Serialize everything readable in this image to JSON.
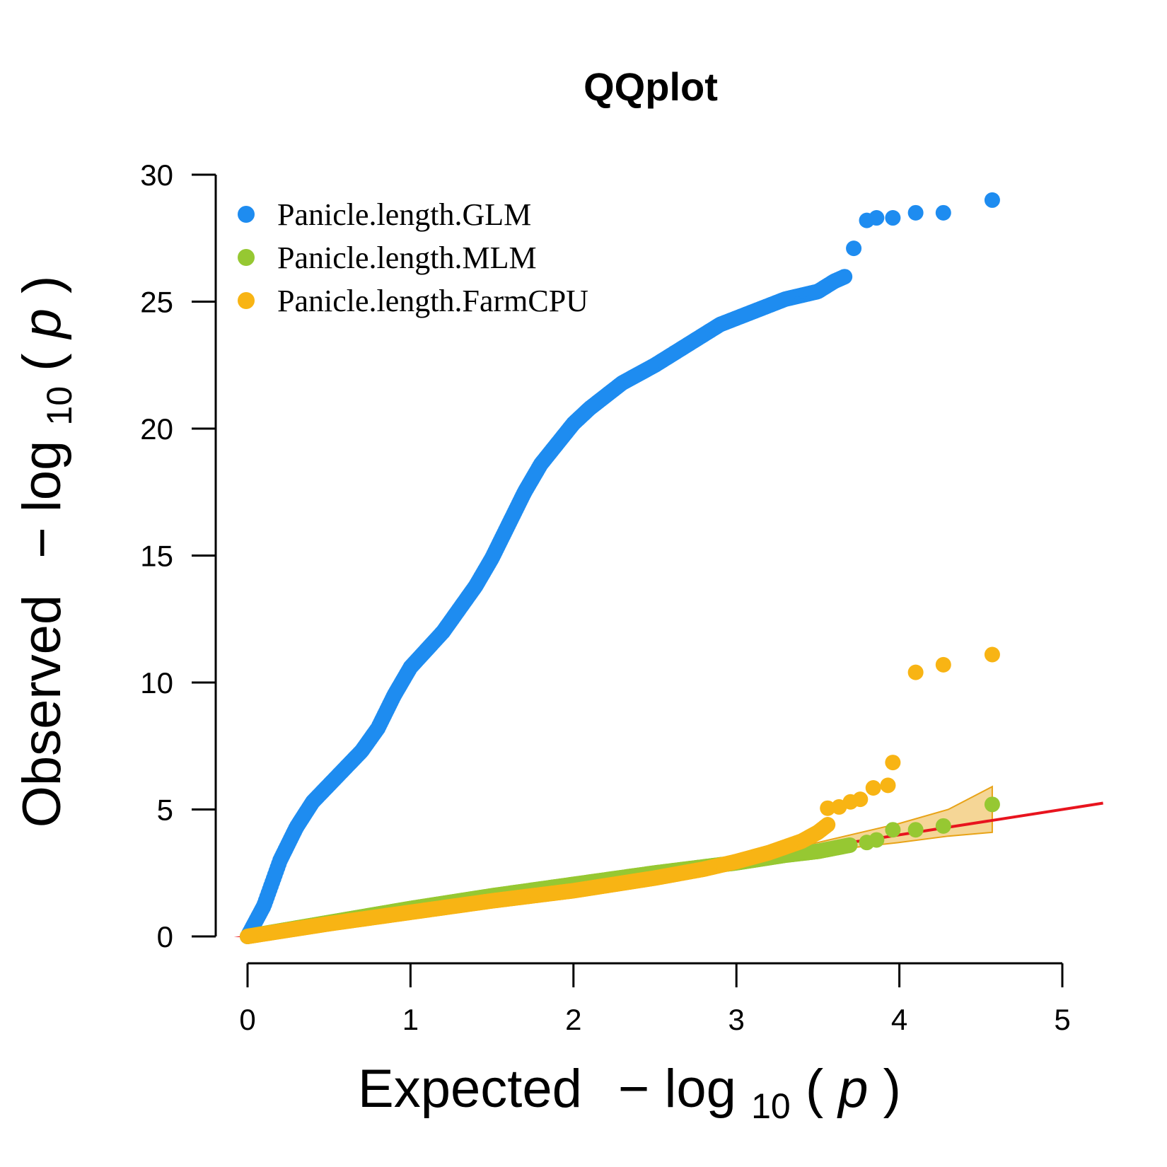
{
  "chart_data": {
    "type": "scatter",
    "title": "QQplot",
    "xlabel": {
      "prefix": "Expected",
      "minus": "−",
      "log": "log",
      "base": "10",
      "var": "p"
    },
    "ylabel": {
      "prefix": "Observed",
      "minus": "−",
      "log": "log",
      "base": "10",
      "var": "p"
    },
    "xlim": [
      0,
      5
    ],
    "ylim": [
      0,
      30
    ],
    "xticks": [
      "0",
      "1",
      "2",
      "3",
      "4",
      "5"
    ],
    "yticks": [
      "0",
      "5",
      "10",
      "15",
      "20",
      "25",
      "30"
    ],
    "legend_position": "top-left",
    "reference_line": {
      "color": "#e8141e",
      "slope": 1
    },
    "confidence_band": {
      "color": "#e8a317",
      "upper": [
        [
          3.0,
          3.05
        ],
        [
          3.5,
          3.7
        ],
        [
          4.0,
          4.45
        ],
        [
          4.3,
          5.0
        ],
        [
          4.57,
          5.9
        ]
      ],
      "lower": [
        [
          3.0,
          2.95
        ],
        [
          3.5,
          3.35
        ],
        [
          4.0,
          3.7
        ],
        [
          4.3,
          3.95
        ],
        [
          4.57,
          4.1
        ]
      ]
    },
    "series": [
      {
        "name": "Panicle.length.GLM",
        "color": "#1e8cf0",
        "curve": [
          [
            0.0,
            0.0
          ],
          [
            0.1,
            1.2
          ],
          [
            0.2,
            3.0
          ],
          [
            0.3,
            4.3
          ],
          [
            0.4,
            5.3
          ],
          [
            0.55,
            6.3
          ],
          [
            0.7,
            7.3
          ],
          [
            0.8,
            8.2
          ],
          [
            0.9,
            9.5
          ],
          [
            1.0,
            10.6
          ],
          [
            1.2,
            12.0
          ],
          [
            1.4,
            13.8
          ],
          [
            1.5,
            14.9
          ],
          [
            1.6,
            16.2
          ],
          [
            1.7,
            17.5
          ],
          [
            1.8,
            18.6
          ],
          [
            1.9,
            19.4
          ],
          [
            2.0,
            20.2
          ],
          [
            2.1,
            20.8
          ],
          [
            2.2,
            21.3
          ],
          [
            2.3,
            21.8
          ],
          [
            2.5,
            22.5
          ],
          [
            2.7,
            23.3
          ],
          [
            2.9,
            24.1
          ],
          [
            3.1,
            24.6
          ],
          [
            3.3,
            25.1
          ],
          [
            3.5,
            25.4
          ],
          [
            3.6,
            25.8
          ],
          [
            3.67,
            26.0
          ]
        ],
        "top_points": [
          [
            3.72,
            27.1
          ],
          [
            3.8,
            28.2
          ],
          [
            3.86,
            28.3
          ],
          [
            3.96,
            28.3
          ],
          [
            4.1,
            28.5
          ],
          [
            4.27,
            28.5
          ],
          [
            4.57,
            29.0
          ]
        ]
      },
      {
        "name": "Panicle.length.MLM",
        "color": "#96c832",
        "curve": [
          [
            0.0,
            0.0
          ],
          [
            0.5,
            0.55
          ],
          [
            1.0,
            1.1
          ],
          [
            1.5,
            1.6
          ],
          [
            2.0,
            2.05
          ],
          [
            2.5,
            2.5
          ],
          [
            3.0,
            2.9
          ],
          [
            3.3,
            3.2
          ],
          [
            3.5,
            3.35
          ],
          [
            3.7,
            3.6
          ]
        ],
        "top_points": [
          [
            3.8,
            3.7
          ],
          [
            3.86,
            3.8
          ],
          [
            3.96,
            4.2
          ],
          [
            4.1,
            4.2
          ],
          [
            4.27,
            4.35
          ],
          [
            4.57,
            5.2
          ]
        ]
      },
      {
        "name": "Panicle.length.FarmCPU",
        "color": "#f8b414",
        "curve": [
          [
            0.0,
            0.0
          ],
          [
            0.5,
            0.5
          ],
          [
            1.0,
            0.95
          ],
          [
            1.5,
            1.4
          ],
          [
            2.0,
            1.8
          ],
          [
            2.5,
            2.3
          ],
          [
            2.8,
            2.65
          ],
          [
            3.0,
            2.95
          ],
          [
            3.2,
            3.3
          ],
          [
            3.4,
            3.75
          ],
          [
            3.5,
            4.1
          ],
          [
            3.56,
            4.4
          ]
        ],
        "top_points": [
          [
            3.56,
            5.05
          ],
          [
            3.63,
            5.1
          ],
          [
            3.7,
            5.3
          ],
          [
            3.76,
            5.4
          ],
          [
            3.84,
            5.85
          ],
          [
            3.93,
            5.95
          ],
          [
            3.96,
            6.85
          ],
          [
            4.1,
            10.4
          ],
          [
            4.27,
            10.7
          ],
          [
            4.57,
            11.1
          ]
        ]
      }
    ]
  }
}
